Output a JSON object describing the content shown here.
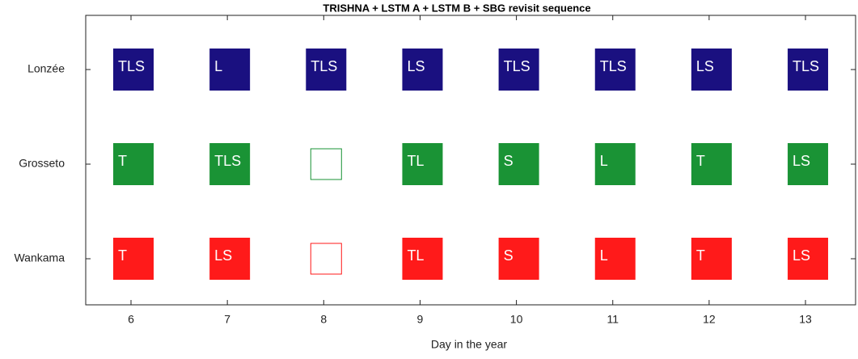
{
  "chart_data": {
    "type": "grid",
    "title": "TRISHNA + LSTM A + LSTM B + SBG revisit sequence",
    "xlabel": "Day in the year",
    "x": [
      6,
      7,
      8,
      9,
      10,
      11,
      12,
      13
    ],
    "xlim": [
      5.53,
      13.52
    ],
    "xticks": [
      6,
      7,
      8,
      9,
      10,
      11,
      12,
      13
    ],
    "rows": [
      {
        "name": "Lonzée",
        "color": "#1a1080",
        "cells": [
          "TLS",
          "L",
          "TLS",
          "LS",
          "TLS",
          "TLS",
          "LS",
          "TLS"
        ]
      },
      {
        "name": "Grosseto",
        "color": "#1a9335",
        "cells": [
          "T",
          "TLS",
          null,
          "TL",
          "S",
          "L",
          "T",
          "LS"
        ]
      },
      {
        "name": "Wankama",
        "color": "#ff1a1a",
        "cells": [
          "T",
          "LS",
          null,
          "TL",
          "S",
          "L",
          "T",
          "LS"
        ]
      }
    ]
  }
}
